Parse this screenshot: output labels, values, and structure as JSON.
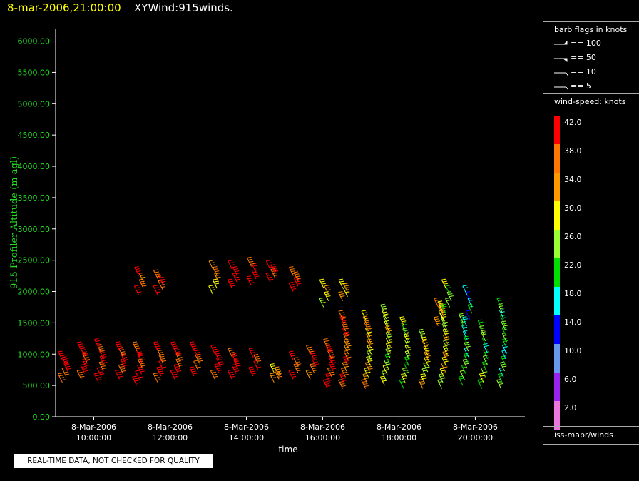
{
  "header": {
    "datetime": "8-mar-2006,21:00:00",
    "product": "XYWind:915winds."
  },
  "disclaimer": "REAL-TIME DATA, NOT CHECKED FOR QUALITY",
  "legend": {
    "barb_title": "barb flags in knots",
    "barbs": [
      "== 100",
      "== 50",
      "== 10",
      "== 5"
    ],
    "speed_title": "wind-speed: knots",
    "source": "iss-mapr/winds",
    "scale": [
      {
        "label": "42.0",
        "color": "#ff0000"
      },
      {
        "label": "38.0",
        "color": "#ff7700"
      },
      {
        "label": "34.0",
        "color": "#ff9900"
      },
      {
        "label": "30.0",
        "color": "#ffff00"
      },
      {
        "label": "26.0",
        "color": "#99ff33"
      },
      {
        "label": "22.0",
        "color": "#00dd00"
      },
      {
        "label": "18.0",
        "color": "#00ffff"
      },
      {
        "label": "14.0",
        "color": "#0000ff"
      },
      {
        "label": "10.0",
        "color": "#6699ee"
      },
      {
        "label": "6.0",
        "color": "#9922ee"
      },
      {
        "label": "2.0",
        "color": "#ee77dd"
      }
    ]
  },
  "chart_data": {
    "type": "scatter",
    "ylabel": "915 Profiler Altitude (m agl)",
    "xlabel": "time",
    "ylim": [
      0,
      6200
    ],
    "xlim_hours": [
      9.0,
      21.3
    ],
    "yticks": [
      "0.00",
      "500.00",
      "1000.00",
      "1500.00",
      "2000.00",
      "2500.00",
      "3000.00",
      "3500.00",
      "4000.00",
      "4500.00",
      "5000.00",
      "5500.00",
      "6000.00"
    ],
    "xticks": [
      {
        "hour": 10,
        "date": "8-Mar-2006",
        "time": "10:00:00"
      },
      {
        "hour": 12,
        "date": "8-Mar-2006",
        "time": "12:00:00"
      },
      {
        "hour": 14,
        "date": "8-Mar-2006",
        "time": "14:00:00"
      },
      {
        "hour": 16,
        "date": "8-Mar-2006",
        "time": "16:00:00"
      },
      {
        "hour": 18,
        "date": "8-Mar-2006",
        "time": "18:00:00"
      },
      {
        "hour": 20,
        "date": "8-Mar-2006",
        "time": "20:00:00"
      }
    ],
    "profiles": [
      {
        "t": 9.25,
        "bot": 550,
        "top": 900,
        "speed": 42
      },
      {
        "t": 9.75,
        "bot": 600,
        "top": 1050,
        "speed": 40
      },
      {
        "t": 10.2,
        "bot": 550,
        "top": 1100,
        "speed": 40
      },
      {
        "t": 10.75,
        "bot": 600,
        "top": 1050,
        "speed": 40
      },
      {
        "t": 11.2,
        "bot": 500,
        "top": 1050,
        "speed": 42
      },
      {
        "t": 11.25,
        "bot": 1950,
        "top": 2250,
        "speed": 38
      },
      {
        "t": 11.75,
        "bot": 1950,
        "top": 2200,
        "speed": 40
      },
      {
        "t": 11.75,
        "bot": 550,
        "top": 1050,
        "speed": 42
      },
      {
        "t": 12.2,
        "bot": 600,
        "top": 1050,
        "speed": 42
      },
      {
        "t": 12.7,
        "bot": 650,
        "top": 1050,
        "speed": 42
      },
      {
        "t": 13.2,
        "bot": 1950,
        "top": 2350,
        "speed": 34
      },
      {
        "t": 13.25,
        "bot": 600,
        "top": 1000,
        "speed": 42
      },
      {
        "t": 13.7,
        "bot": 2050,
        "top": 2350,
        "speed": 42
      },
      {
        "t": 13.7,
        "bot": 600,
        "top": 950,
        "speed": 42
      },
      {
        "t": 14.2,
        "bot": 2100,
        "top": 2400,
        "speed": 42
      },
      {
        "t": 14.25,
        "bot": 650,
        "top": 950,
        "speed": 40
      },
      {
        "t": 14.7,
        "bot": 2150,
        "top": 2350,
        "speed": 42
      },
      {
        "t": 14.8,
        "bot": 550,
        "top": 700,
        "speed": 36
      },
      {
        "t": 15.3,
        "bot": 2000,
        "top": 2250,
        "speed": 42
      },
      {
        "t": 15.3,
        "bot": 600,
        "top": 900,
        "speed": 42
      },
      {
        "t": 15.75,
        "bot": 600,
        "top": 1000,
        "speed": 40
      },
      {
        "t": 16.1,
        "bot": 1750,
        "top": 2050,
        "speed": 30
      },
      {
        "t": 16.2,
        "bot": 450,
        "top": 1100,
        "speed": 40
      },
      {
        "t": 16.6,
        "bot": 1850,
        "top": 2050,
        "speed": 30
      },
      {
        "t": 16.6,
        "bot": 450,
        "top": 1550,
        "speed": 38
      },
      {
        "t": 17.2,
        "bot": 450,
        "top": 1550,
        "speed": 32
      },
      {
        "t": 17.7,
        "bot": 500,
        "top": 1650,
        "speed": 28
      },
      {
        "t": 18.2,
        "bot": 450,
        "top": 1450,
        "speed": 26
      },
      {
        "t": 18.7,
        "bot": 450,
        "top": 1250,
        "speed": 30
      },
      {
        "t": 19.1,
        "bot": 1450,
        "top": 1750,
        "speed": 36
      },
      {
        "t": 19.2,
        "bot": 450,
        "top": 1700,
        "speed": 30
      },
      {
        "t": 19.3,
        "bot": 1650,
        "top": 2050,
        "speed": 24
      },
      {
        "t": 19.75,
        "bot": 500,
        "top": 1500,
        "speed": 22
      },
      {
        "t": 19.85,
        "bot": 1450,
        "top": 1950,
        "speed": 16
      },
      {
        "t": 20.25,
        "bot": 450,
        "top": 1400,
        "speed": 24
      },
      {
        "t": 20.75,
        "bot": 450,
        "top": 1750,
        "speed": 22
      }
    ]
  }
}
